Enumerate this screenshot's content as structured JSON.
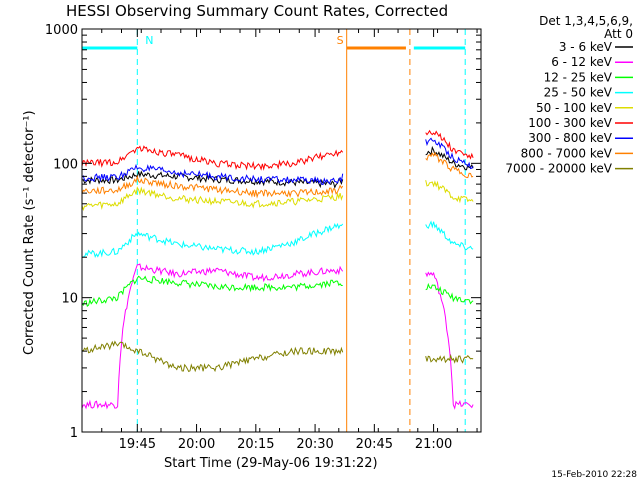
{
  "chart_data": {
    "type": "line",
    "title": "HESSI Observing Summary Count Rates, Corrected",
    "xlabel": "Start Time (29-May-06 19:31:22)",
    "ylabel": "Corrected Count Rate (s⁻¹ detector⁻¹)",
    "x_start": "19:31:22",
    "xlim": [
      "19:31",
      "21:12"
    ],
    "ylim": [
      1,
      1000
    ],
    "yscale": "log",
    "x_ticks": [
      "19:45",
      "20:00",
      "20:15",
      "20:30",
      "20:45",
      "21:00"
    ],
    "y_ticks": [
      "1",
      "10",
      "100",
      "1000"
    ],
    "legend_header": [
      "Det 1,3,4,5,6,9,",
      "Att 0"
    ],
    "legend_position": "right",
    "footer_date": "15-Feb-2010 22:28",
    "series": [
      {
        "name": "3 - 6 keV",
        "color": "#000000",
        "x": [
          "19:31",
          "19:40",
          "19:45",
          "19:55",
          "20:05",
          "20:15",
          "20:25",
          "20:35",
          "21:00",
          "21:05",
          "21:10"
        ],
        "values": [
          75,
          75,
          83,
          80,
          76,
          74,
          72,
          70,
          125,
          100,
          92
        ]
      },
      {
        "name": "6 - 12 keV",
        "color": "#ff00ff",
        "x": [
          "19:31",
          "19:40",
          "19:45",
          "19:55",
          "20:05",
          "20:15",
          "20:25",
          "20:35",
          "21:00",
          "21:05",
          "21:10"
        ],
        "values": [
          1.6,
          1.6,
          17,
          15,
          16,
          14,
          15,
          16,
          15,
          1.6,
          1.6
        ]
      },
      {
        "name": "12 - 25 keV",
        "color": "#00ff00",
        "x": [
          "19:31",
          "19:40",
          "19:45",
          "19:55",
          "20:05",
          "20:15",
          "20:25",
          "20:35",
          "21:00",
          "21:05",
          "21:10"
        ],
        "values": [
          9,
          10,
          14,
          13,
          12,
          12,
          12,
          13,
          12,
          10,
          9.5
        ]
      },
      {
        "name": "25 - 50 keV",
        "color": "#00ffff",
        "x": [
          "19:31",
          "19:40",
          "19:45",
          "19:55",
          "20:05",
          "20:15",
          "20:25",
          "20:35",
          "21:00",
          "21:05",
          "21:10"
        ],
        "values": [
          21,
          22,
          30,
          25,
          23,
          22,
          26,
          34,
          35,
          25,
          23
        ]
      },
      {
        "name": "50 - 100 keV",
        "color": "#dddd00",
        "x": [
          "19:31",
          "19:40",
          "19:45",
          "19:55",
          "20:05",
          "20:15",
          "20:25",
          "20:35",
          "21:00",
          "21:05",
          "21:10"
        ],
        "values": [
          48,
          50,
          63,
          55,
          52,
          50,
          52,
          56,
          72,
          56,
          52
        ]
      },
      {
        "name": "100 - 300 keV",
        "color": "#ff0000",
        "x": [
          "19:31",
          "19:40",
          "19:45",
          "19:55",
          "20:05",
          "20:15",
          "20:25",
          "20:35",
          "21:00",
          "21:05",
          "21:10"
        ],
        "values": [
          100,
          102,
          130,
          115,
          100,
          95,
          100,
          120,
          175,
          125,
          110
        ]
      },
      {
        "name": "300 - 800 keV",
        "color": "#0000ff",
        "x": [
          "19:31",
          "19:40",
          "19:45",
          "19:55",
          "20:05",
          "20:15",
          "20:25",
          "20:35",
          "21:00",
          "21:05",
          "21:10"
        ],
        "values": [
          78,
          79,
          93,
          85,
          80,
          76,
          75,
          73,
          150,
          110,
          95
        ]
      },
      {
        "name": "800 - 7000 keV",
        "color": "#ff8000",
        "x": [
          "19:31",
          "19:40",
          "19:45",
          "19:55",
          "20:05",
          "20:15",
          "20:25",
          "20:35",
          "21:00",
          "21:05",
          "21:10"
        ],
        "values": [
          62,
          63,
          75,
          68,
          64,
          60,
          60,
          62,
          115,
          90,
          80
        ]
      },
      {
        "name": "7000 - 20000 keV",
        "color": "#808000",
        "x": [
          "19:31",
          "19:40",
          "19:45",
          "19:55",
          "20:05",
          "20:15",
          "20:25",
          "20:35",
          "21:00",
          "21:05",
          "21:10"
        ],
        "values": [
          4,
          4.5,
          4,
          3,
          3,
          3.5,
          4,
          4,
          3.5,
          3.5,
          3.5
        ]
      }
    ],
    "annotations": [
      {
        "label": "N",
        "color": "#00ffff",
        "x_start": "19:31",
        "x_end": "19:45",
        "dashed_line_at": "19:45"
      },
      {
        "label": "S",
        "color": "#ff8000",
        "x_start": "20:38",
        "x_end": "20:53",
        "dashed_line_at": "20:54"
      },
      {
        "label": "",
        "color": "#00ffff",
        "x_start": "20:55",
        "x_end": "21:08",
        "dashed_line_at": "21:08"
      }
    ]
  }
}
